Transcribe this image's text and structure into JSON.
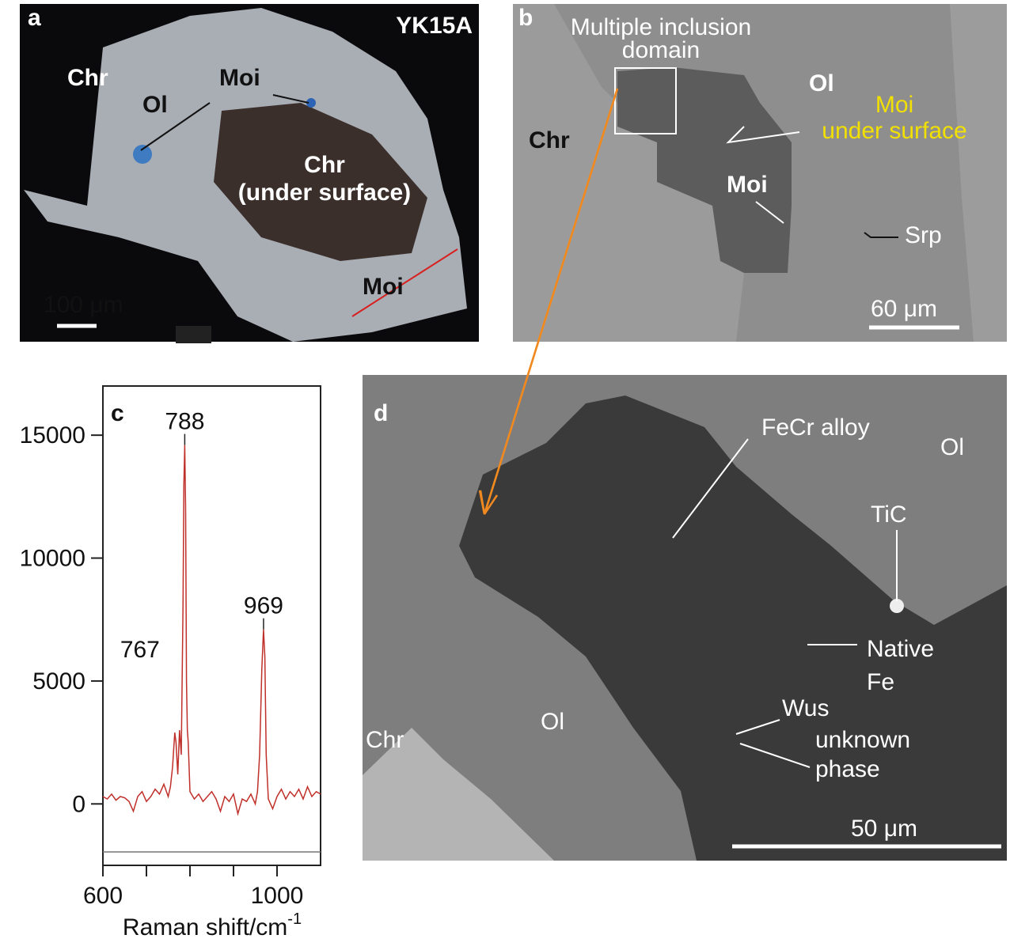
{
  "panels": {
    "a": {
      "letter": "a",
      "sample": "YK15A",
      "labels": [
        "Chr",
        "Ol",
        "Moi",
        "Chr",
        "(under surface)",
        "Moi"
      ],
      "scale_bar": "100 μm"
    },
    "b": {
      "letter": "b",
      "labels": [
        "Multiple inclusion",
        "domain",
        "Ol",
        "Moi",
        "under surface",
        "Chr",
        "Moi",
        "Srp"
      ],
      "scale_bar": "60 μm"
    },
    "d": {
      "letter": "d",
      "labels": [
        "FeCr alloy",
        "Ol",
        "TiC",
        "Native",
        "Fe",
        "Wus",
        "unknown",
        "phase",
        "Chr",
        "Ol"
      ],
      "scale_bar": "50 μm"
    }
  },
  "chart_data": {
    "type": "line",
    "letter": "c",
    "xlabel": "Raman shift/cm",
    "xlabel_superscript": "-1",
    "x": [
      600,
      610,
      620,
      630,
      640,
      650,
      660,
      670,
      680,
      690,
      700,
      710,
      720,
      730,
      740,
      750,
      755,
      760,
      765,
      768,
      772,
      776,
      780,
      784,
      786,
      788,
      790,
      792,
      794,
      796,
      800,
      810,
      820,
      830,
      840,
      850,
      860,
      870,
      880,
      890,
      900,
      910,
      920,
      930,
      940,
      950,
      955,
      960,
      965,
      969,
      972,
      975,
      980,
      990,
      1000,
      1010,
      1020,
      1030,
      1040,
      1050,
      1060,
      1070,
      1080,
      1090,
      1100
    ],
    "values": [
      300,
      200,
      400,
      150,
      300,
      250,
      100,
      -300,
      300,
      500,
      100,
      300,
      600,
      400,
      800,
      300,
      700,
      1500,
      2900,
      2500,
      1200,
      3000,
      2000,
      8000,
      13000,
      14600,
      12000,
      5000,
      3000,
      2500,
      500,
      200,
      400,
      100,
      300,
      500,
      200,
      -300,
      300,
      100,
      400,
      -400,
      200,
      100,
      400,
      0,
      500,
      2000,
      5500,
      7100,
      6000,
      2000,
      200,
      -200,
      300,
      600,
      200,
      500,
      300,
      600,
      200,
      700,
      300,
      500,
      400
    ],
    "color": "#c0302a",
    "peaks": [
      767,
      788,
      969
    ],
    "xlim": [
      600,
      1100
    ],
    "xticks": [
      600,
      1000
    ],
    "xminor": [
      700,
      800,
      900
    ],
    "ylim": [
      -2500,
      17000
    ],
    "yticks": [
      0,
      5000,
      10000,
      15000
    ]
  }
}
